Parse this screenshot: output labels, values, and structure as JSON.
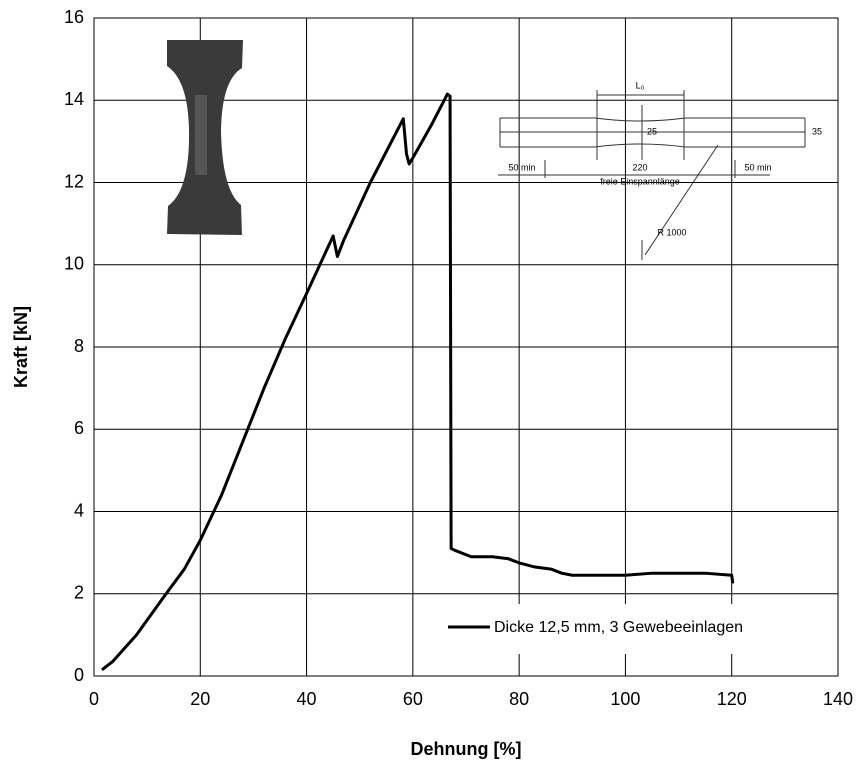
{
  "chart_data": {
    "type": "line",
    "xlabel": "Dehnung [%]",
    "ylabel": "Kraft [kN]",
    "x": [
      1.5,
      3.5,
      8,
      13,
      17,
      20,
      24,
      28,
      32,
      36,
      40,
      45,
      45.8,
      47,
      52,
      58.2,
      58.8,
      59.3,
      60,
      63.5,
      66.5,
      67,
      67.2,
      68,
      71,
      75,
      78,
      80,
      83,
      86,
      88,
      90,
      100,
      105,
      115,
      120,
      120.2
    ],
    "series": [
      {
        "name": "Dicke 12,5 mm, 3 Gewebeeinlagen",
        "color": "#000000",
        "values": [
          0.15,
          0.35,
          1.0,
          1.9,
          2.6,
          3.3,
          4.4,
          5.7,
          7.0,
          8.2,
          9.3,
          10.7,
          10.2,
          10.6,
          12.0,
          13.55,
          12.7,
          12.45,
          12.6,
          13.4,
          14.15,
          14.1,
          3.1,
          3.05,
          2.9,
          2.9,
          2.85,
          2.75,
          2.65,
          2.6,
          2.5,
          2.45,
          2.45,
          2.5,
          2.5,
          2.45,
          2.25
        ]
      }
    ],
    "xlim": [
      0,
      140
    ],
    "xticks": [
      0,
      20,
      40,
      60,
      80,
      100,
      120,
      140
    ],
    "ylim": [
      0,
      16
    ],
    "yticks": [
      0,
      2,
      4,
      6,
      8,
      10,
      12,
      14,
      16
    ],
    "grid": true,
    "legend": "lower right",
    "inset_labels": [
      "L₀",
      "25",
      "35",
      "50 min",
      "220",
      "50 min",
      "freie Einspannlänge",
      "R 1000"
    ]
  }
}
